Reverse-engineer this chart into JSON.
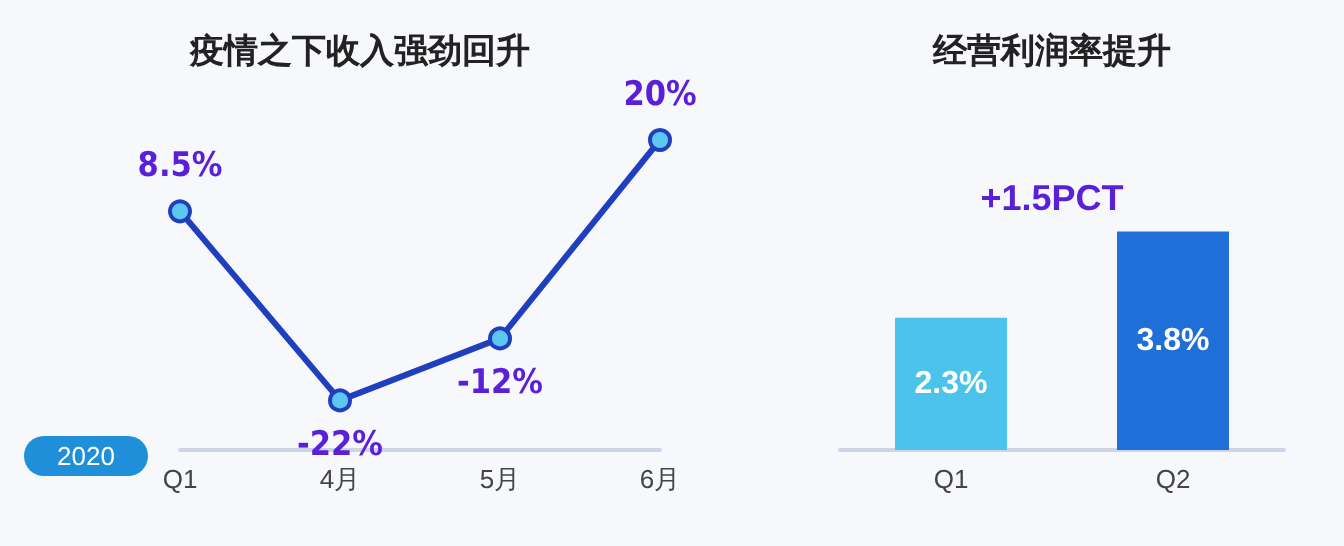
{
  "chart_data": [
    {
      "type": "line",
      "title": "疫情之下收入强劲回升",
      "categories": [
        "Q1",
        "4月",
        "5月",
        "6月"
      ],
      "series": [
        {
          "color": "#1f3fbf",
          "values": [
            8.5,
            -22,
            -12,
            20
          ],
          "value_labels": [
            "8.5%",
            "-22%",
            "-12%",
            "20%"
          ]
        }
      ],
      "marker": "circle",
      "tick_labels": "x",
      "annotations": [
        "2020"
      ]
    },
    {
      "type": "bar",
      "title": "经营利润率提升",
      "categories": [
        "Q1",
        "Q2"
      ],
      "values": [
        2.3,
        3.8
      ],
      "colors": [
        "#4cc3ea",
        "#1e6fd8"
      ],
      "value_labels": [
        "2.3%",
        "3.8%"
      ],
      "tick_labels": "x",
      "annotations": [
        "+1.5PCT"
      ]
    }
  ]
}
